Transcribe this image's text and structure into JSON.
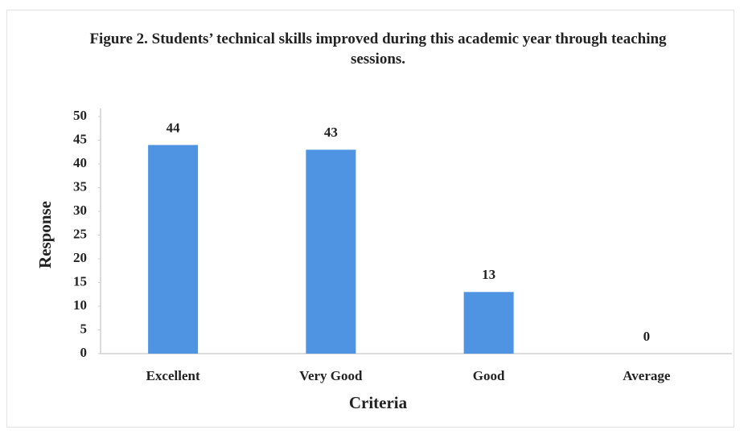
{
  "chart_data": {
    "type": "bar",
    "title": "Figure 2. Students’ technical skills improved during this academic year through teaching sessions.",
    "x_label": "Criteria",
    "y_label": "Response",
    "categories": [
      "Excellent",
      "Very Good",
      "Good",
      "Average"
    ],
    "values": [
      44,
      43,
      13,
      0
    ],
    "color": "#4f94e3",
    "ylim": [
      0,
      50
    ],
    "yticks": [
      0,
      5,
      10,
      15,
      20,
      25,
      30,
      35,
      40,
      45,
      50
    ],
    "grid": false
  }
}
